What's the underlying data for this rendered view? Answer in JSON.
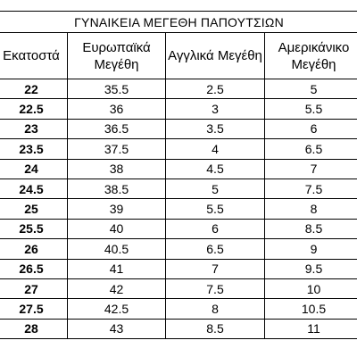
{
  "table": {
    "title": "ΓΥΝΑΙΚΕΙΑ ΜΕΓΕΘΗ ΠΑΠΟΥΤΣΙΩΝ",
    "headers": [
      "Εκατοστά",
      "Ευρωπαϊκά Μεγέθη",
      "Αγγλικά Μεγέθη",
      "Αμερικάνικο Μεγέθη"
    ],
    "rows": [
      [
        22,
        35.5,
        2.5,
        5
      ],
      [
        22.5,
        36,
        3,
        5.5
      ],
      [
        23,
        36.5,
        3.5,
        6
      ],
      [
        23.5,
        37.5,
        4,
        6.5
      ],
      [
        24,
        38,
        4.5,
        7
      ],
      [
        24.5,
        38.5,
        5,
        7.5
      ],
      [
        25,
        39,
        5.5,
        8
      ],
      [
        25.5,
        40,
        6,
        8.5
      ],
      [
        26,
        40.5,
        6.5,
        9
      ],
      [
        26.5,
        41,
        7,
        9.5
      ],
      [
        27,
        42,
        7.5,
        10
      ],
      [
        27.5,
        42.5,
        8,
        10.5
      ],
      [
        28,
        43,
        8.5,
        11
      ]
    ]
  }
}
